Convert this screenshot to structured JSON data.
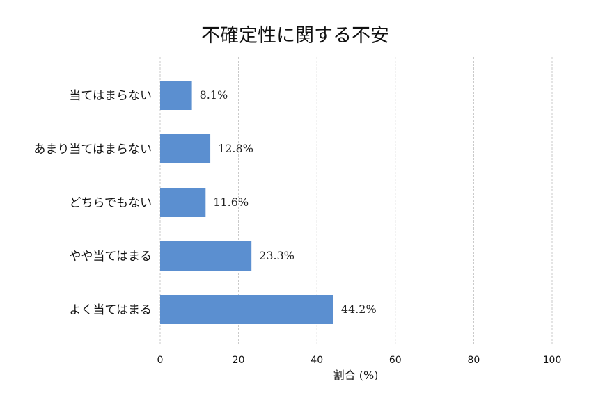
{
  "chart_data": {
    "type": "bar",
    "orientation": "horizontal",
    "title": "不確定性に関する不安",
    "xlabel": "割合 (%)",
    "ylabel": "",
    "categories": [
      "当てはまらない",
      "あまり当てはまらない",
      "どちらでもない",
      "やや当てはまる",
      "よく当てはまる"
    ],
    "values": [
      8.1,
      12.8,
      11.6,
      23.3,
      44.2
    ],
    "value_labels": [
      "8.1%",
      "12.8%",
      "11.6%",
      "23.3%",
      "44.2%"
    ],
    "xlim": [
      0,
      100
    ],
    "xticks": [
      0,
      20,
      40,
      60,
      80,
      100
    ],
    "xtick_labels": [
      "0",
      "20",
      "40",
      "60",
      "80",
      "100"
    ],
    "grid": "x-dashed",
    "bar_color": "#5b8fd0"
  }
}
